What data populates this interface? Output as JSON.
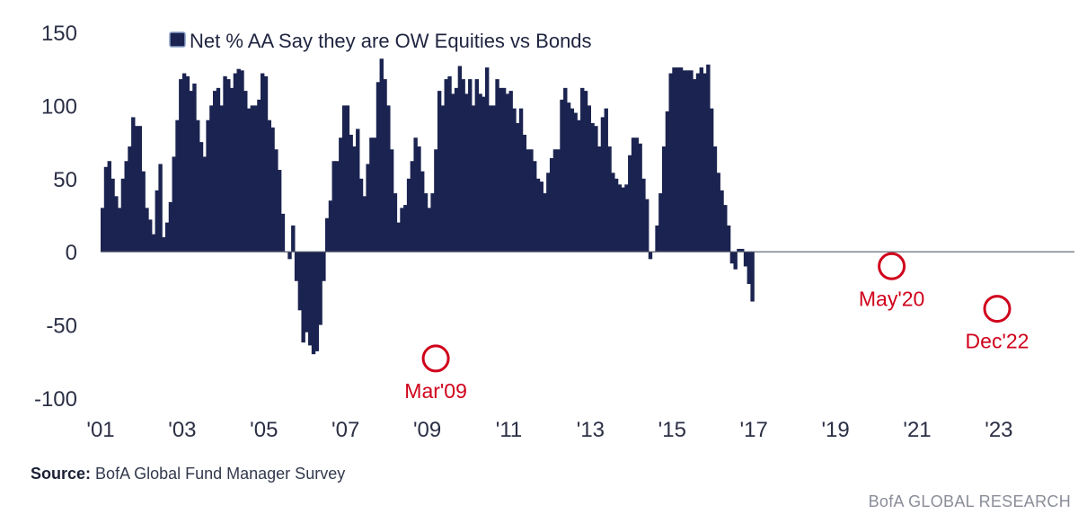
{
  "chart_data": {
    "type": "bar",
    "legend": "Net % AA Say they are OW Equities vs Bonds",
    "series_color": "#1b2350",
    "annotation_color": "#d0021b",
    "ylim": [
      -100,
      150
    ],
    "yticks": [
      150,
      100,
      50,
      0,
      -50,
      -100
    ],
    "xlim": [
      2001.0,
      2024.85
    ],
    "xtick_labels": [
      "'01",
      "'03",
      "'05",
      "'07",
      "'09",
      "'11",
      "'13",
      "'15",
      "'17",
      "'19",
      "'21",
      "'23"
    ],
    "xtick_years": [
      2001,
      2003,
      2005,
      2007,
      2009,
      2011,
      2013,
      2015,
      2017,
      2019,
      2021,
      2023
    ],
    "start_year": 2001,
    "start_month": 1,
    "values": [
      30,
      58,
      62,
      50,
      38,
      30,
      50,
      62,
      72,
      92,
      86,
      86,
      55,
      30,
      22,
      12,
      42,
      60,
      10,
      20,
      34,
      65,
      90,
      118,
      122,
      120,
      110,
      115,
      90,
      75,
      65,
      90,
      100,
      110,
      112,
      100,
      120,
      118,
      112,
      122,
      125,
      124,
      110,
      98,
      100,
      100,
      104,
      122,
      120,
      90,
      85,
      70,
      56,
      26,
      0,
      -5,
      18,
      -20,
      -40,
      -62,
      -55,
      -64,
      -70,
      -68,
      -50,
      -20,
      23,
      35,
      62,
      62,
      78,
      100,
      100,
      80,
      72,
      84,
      50,
      38,
      60,
      78,
      78,
      116,
      132,
      118,
      100,
      70,
      40,
      20,
      30,
      32,
      50,
      62,
      78,
      72,
      55,
      40,
      30,
      40,
      70,
      110,
      100,
      118,
      120,
      108,
      112,
      127,
      118,
      108,
      118,
      100,
      118,
      108,
      106,
      126,
      100,
      100,
      118,
      112,
      112,
      108,
      110,
      98,
      88,
      98,
      80,
      70,
      70,
      62,
      50,
      48,
      40,
      54,
      64,
      70,
      70,
      104,
      112,
      102,
      98,
      95,
      90,
      112,
      110,
      100,
      88,
      86,
      72,
      92,
      98,
      72,
      54,
      50,
      46,
      44,
      46,
      66,
      78,
      78,
      74,
      50,
      36,
      -5,
      0,
      18,
      40,
      72,
      96,
      122,
      126,
      126,
      126,
      124,
      124,
      124,
      118,
      122,
      126,
      122,
      128,
      98,
      72,
      54,
      42,
      32,
      18,
      -8,
      -12,
      2,
      2,
      -10,
      -22,
      -34
    ],
    "annotations": [
      {
        "label": "Mar'09",
        "date": [
          2009,
          3
        ],
        "value": -68
      },
      {
        "label": "May'20",
        "date": [
          2020,
          5
        ],
        "value": -5
      },
      {
        "label": "Dec'22",
        "date": [
          2022,
          12
        ],
        "value": -34
      }
    ]
  },
  "footer": {
    "source_label": "Source:",
    "source_text": "BofA Global Fund Manager Survey",
    "brand": "BofA GLOBAL RESEARCH"
  }
}
